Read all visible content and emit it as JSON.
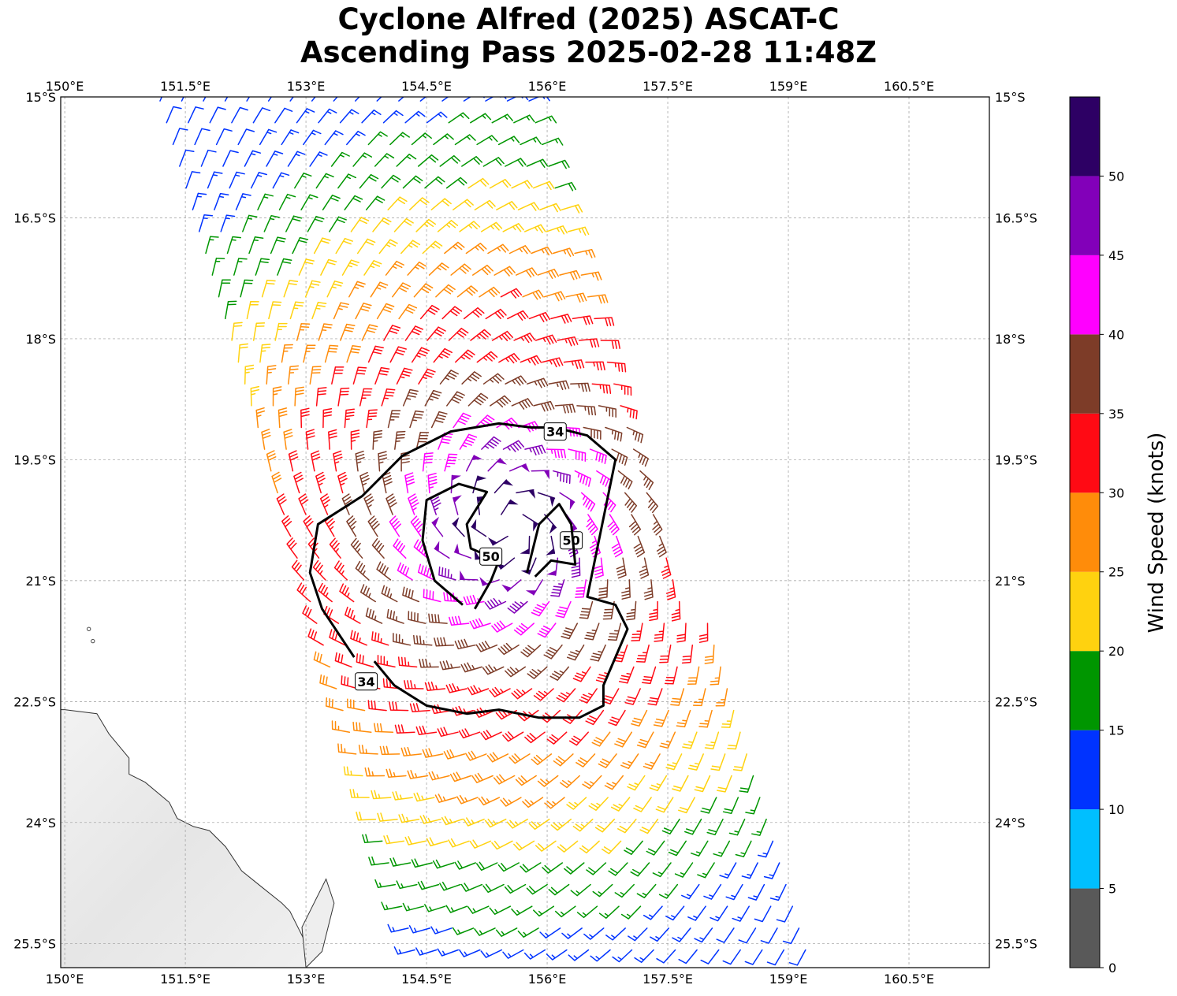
{
  "title": {
    "line1": "Cyclone Alfred (2025) ASCAT-C",
    "line2": "Ascending Pass 2025-02-28 11:48Z"
  },
  "map": {
    "lon_range": [
      149.95,
      161.5
    ],
    "lat_range": [
      -25.8,
      -15.0
    ],
    "lon_ticks": [
      {
        "value": 150.0,
        "label": "150°E"
      },
      {
        "value": 151.5,
        "label": "151.5°E"
      },
      {
        "value": 153.0,
        "label": "153°E"
      },
      {
        "value": 154.5,
        "label": "154.5°E"
      },
      {
        "value": 156.0,
        "label": "156°E"
      },
      {
        "value": 157.5,
        "label": "157.5°E"
      },
      {
        "value": 159.0,
        "label": "159°E"
      },
      {
        "value": 160.5,
        "label": "160.5°E"
      }
    ],
    "lat_ticks": [
      {
        "value": -15.0,
        "label": "15°S"
      },
      {
        "value": -16.5,
        "label": "16.5°S"
      },
      {
        "value": -18.0,
        "label": "18°S"
      },
      {
        "value": -19.5,
        "label": "19.5°S"
      },
      {
        "value": -21.0,
        "label": "21°S"
      },
      {
        "value": -22.5,
        "label": "22.5°S"
      },
      {
        "value": -24.0,
        "label": "24°S"
      },
      {
        "value": -25.5,
        "label": "25.5°S"
      }
    ],
    "gridlines": true,
    "coastline": [
      [
        150.0,
        -22.6
      ],
      [
        150.4,
        -22.65
      ],
      [
        150.55,
        -22.9
      ],
      [
        150.8,
        -23.2
      ],
      [
        150.8,
        -23.4
      ],
      [
        151.0,
        -23.5
      ],
      [
        151.3,
        -23.75
      ],
      [
        151.4,
        -23.95
      ],
      [
        151.6,
        -24.05
      ],
      [
        151.8,
        -24.1
      ],
      [
        152.0,
        -24.3
      ],
      [
        152.2,
        -24.6
      ],
      [
        152.45,
        -24.8
      ],
      [
        152.7,
        -25.0
      ],
      [
        152.8,
        -25.1
      ],
      [
        152.9,
        -25.3
      ],
      [
        153.0,
        -25.5
      ],
      [
        153.0,
        -25.9
      ]
    ],
    "island": [
      [
        152.95,
        -25.3
      ],
      [
        153.25,
        -24.7
      ],
      [
        153.35,
        -25.0
      ],
      [
        153.2,
        -25.6
      ],
      [
        153.0,
        -25.8
      ],
      [
        152.95,
        -25.3
      ]
    ],
    "small_islands": [
      [
        150.3,
        -21.6
      ],
      [
        150.35,
        -21.75
      ]
    ]
  },
  "chart_data": {
    "type": "wind_barb",
    "center": {
      "lon": 155.5,
      "lat": -20.3
    },
    "swath": {
      "left_edge_lon_at": [
        [
          -15.0,
          151.05
        ],
        [
          -25.8,
          154.3
        ]
      ],
      "right_edge_lon_at": [
        [
          -15.0,
          156.0
        ],
        [
          -25.8,
          159.3
        ]
      ]
    },
    "speed_profile_knots": [
      {
        "r_deg": 0.0,
        "speed": 52
      },
      {
        "r_deg": 0.4,
        "speed": 52
      },
      {
        "r_deg": 0.8,
        "speed": 48
      },
      {
        "r_deg": 1.2,
        "speed": 42
      },
      {
        "r_deg": 1.7,
        "speed": 37
      },
      {
        "r_deg": 2.3,
        "speed": 33
      },
      {
        "r_deg": 3.0,
        "speed": 29
      },
      {
        "r_deg": 3.6,
        "speed": 24
      },
      {
        "r_deg": 4.2,
        "speed": 20
      },
      {
        "r_deg": 4.8,
        "speed": 16
      },
      {
        "r_deg": 5.5,
        "speed": 13
      },
      {
        "r_deg": 6.5,
        "speed": 10
      }
    ],
    "contours": [
      {
        "level": 34,
        "label": "34",
        "label_positions": [
          [
            156.1,
            -19.15
          ],
          [
            153.75,
            -22.25
          ]
        ],
        "path": [
          [
            153.6,
            -21.95
          ],
          [
            153.2,
            -21.35
          ],
          [
            153.05,
            -20.9
          ],
          [
            153.15,
            -20.3
          ],
          [
            153.7,
            -19.95
          ],
          [
            154.2,
            -19.45
          ],
          [
            154.8,
            -19.15
          ],
          [
            155.4,
            -19.05
          ],
          [
            155.8,
            -19.1
          ],
          [
            156.1,
            -19.1
          ],
          [
            156.5,
            -19.2
          ],
          [
            156.85,
            -19.5
          ],
          [
            156.5,
            -21.2
          ],
          [
            156.85,
            -21.3
          ],
          [
            157.0,
            -21.6
          ],
          [
            156.7,
            -22.3
          ],
          [
            156.7,
            -22.55
          ],
          [
            156.4,
            -22.7
          ],
          [
            155.9,
            -22.7
          ],
          [
            155.4,
            -22.6
          ],
          [
            155.0,
            -22.65
          ],
          [
            154.5,
            -22.55
          ],
          [
            154.1,
            -22.3
          ],
          [
            153.85,
            -22.0
          ]
        ]
      },
      {
        "level": 50,
        "label": "50",
        "label_positions": [
          [
            155.3,
            -20.7
          ],
          [
            156.3,
            -20.5
          ]
        ],
        "path": [
          [
            154.95,
            -21.3
          ],
          [
            154.6,
            -21.0
          ],
          [
            154.45,
            -20.5
          ],
          [
            154.5,
            -20.0
          ],
          [
            154.9,
            -19.8
          ],
          [
            155.25,
            -19.9
          ],
          [
            155.0,
            -20.3
          ],
          [
            155.05,
            -20.6
          ],
          [
            155.4,
            -20.75
          ],
          [
            155.3,
            -21.0
          ],
          [
            155.1,
            -21.35
          ]
        ]
      },
      {
        "level": 50,
        "label": "50",
        "label_positions": [],
        "path": [
          [
            155.75,
            -20.9
          ],
          [
            155.9,
            -20.3
          ],
          [
            156.15,
            -20.05
          ],
          [
            156.3,
            -20.3
          ],
          [
            156.35,
            -20.8
          ],
          [
            156.05,
            -20.75
          ],
          [
            155.85,
            -20.95
          ]
        ]
      }
    ],
    "colorbar": {
      "label": "Wind Speed (knots)",
      "min": 0,
      "max": 55,
      "tick_values": [
        0,
        5,
        10,
        15,
        20,
        25,
        30,
        35,
        40,
        45,
        50
      ],
      "tick_labels": [
        "0",
        "5",
        "10",
        "15",
        "20",
        "25",
        "30",
        "35",
        "40",
        "45",
        "50"
      ],
      "bins": [
        {
          "from": 0,
          "to": 5,
          "color": "#595959"
        },
        {
          "from": 5,
          "to": 10,
          "color": "#00bfff"
        },
        {
          "from": 10,
          "to": 15,
          "color": "#0033ff"
        },
        {
          "from": 15,
          "to": 20,
          "color": "#009600"
        },
        {
          "from": 20,
          "to": 25,
          "color": "#ffd20f"
        },
        {
          "from": 25,
          "to": 30,
          "color": "#ff8c0a"
        },
        {
          "from": 30,
          "to": 35,
          "color": "#ff0a14"
        },
        {
          "from": 35,
          "to": 40,
          "color": "#7d3c28"
        },
        {
          "from": 40,
          "to": 45,
          "color": "#ff00ff"
        },
        {
          "from": 45,
          "to": 50,
          "color": "#8200b9"
        },
        {
          "from": 50,
          "to": 55,
          "color": "#2d0064"
        }
      ]
    }
  }
}
